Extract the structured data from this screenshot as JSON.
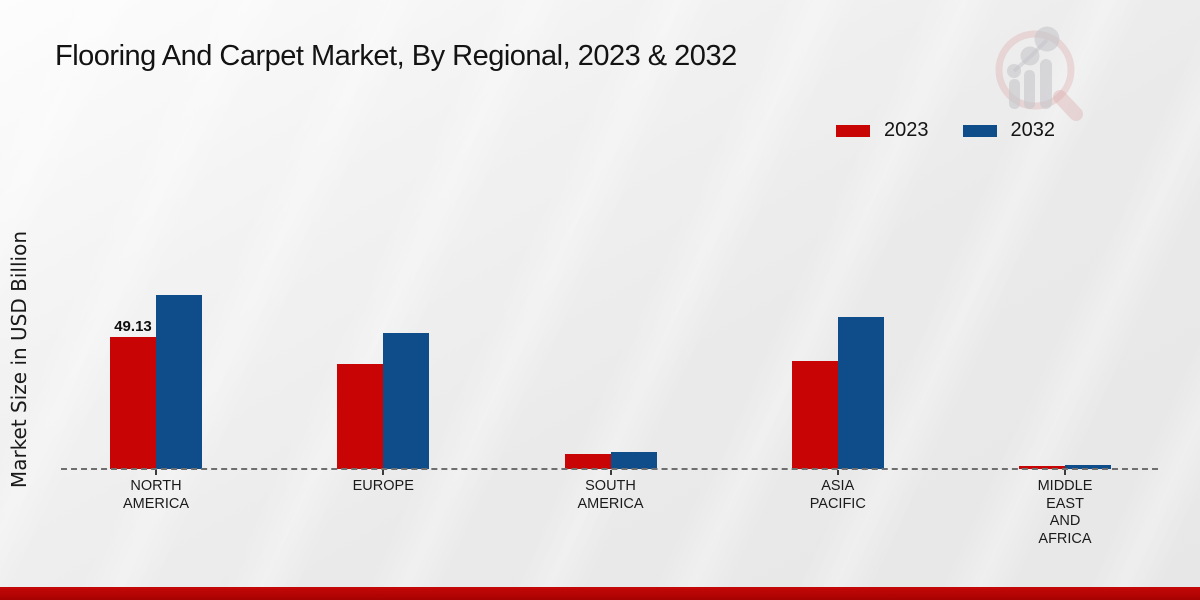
{
  "chart_data": {
    "type": "bar",
    "title": "Flooring And Carpet Market, By Regional, 2023 & 2032",
    "ylabel": "Market Size in USD Billion",
    "xlabel": "",
    "categories": [
      "NORTH AMERICA",
      "EUROPE",
      "SOUTH AMERICA",
      "ASIA PACIFIC",
      "MIDDLE EAST AND AFRICA"
    ],
    "category_label_lines": [
      [
        "NORTH",
        "AMERICA"
      ],
      [
        "EUROPE"
      ],
      [
        "SOUTH",
        "AMERICA"
      ],
      [
        "ASIA",
        "PACIFIC"
      ],
      [
        "MIDDLE",
        "EAST",
        "AND",
        "AFRICA"
      ]
    ],
    "series": [
      {
        "name": "2023",
        "color": "#c80404",
        "values": [
          49.13,
          38.8,
          5.4,
          40.2,
          1.3
        ]
      },
      {
        "name": "2032",
        "color": "#0e4d8a",
        "values": [
          64.7,
          50.6,
          6.3,
          56.5,
          1.6
        ]
      }
    ],
    "annotations": [
      {
        "text": "49.13",
        "category_index": 0,
        "series_index": 0
      }
    ],
    "ylim": [
      0,
      80
    ],
    "grid": false,
    "legend_position": "top-right",
    "baseline_style": "dashed"
  },
  "watermark": {
    "name": "market-research-future-logo"
  },
  "footer": {
    "accent_color": "#b10303"
  },
  "background": {
    "base_color": "#eaeaea"
  }
}
